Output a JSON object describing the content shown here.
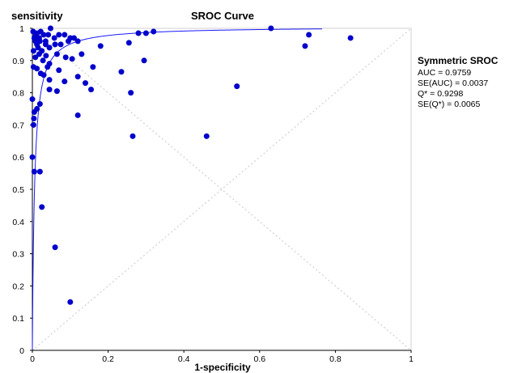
{
  "chart_data": {
    "type": "scatter",
    "title": "SROC Curve",
    "xlabel": "1-specificity",
    "ylabel": "sensitivity",
    "xlim": [
      0,
      1
    ],
    "ylim": [
      0,
      1
    ],
    "x_ticks": [
      "0",
      "0.2",
      "0.4",
      "0.6",
      "0.8",
      "1"
    ],
    "y_ticks": [
      "0",
      "0.1",
      "0.2",
      "0.3",
      "0.4",
      "0.5",
      "0.6",
      "0.7",
      "0.8",
      "0.9",
      "1"
    ],
    "grid": false,
    "legend": {
      "title": "Symmetric SROC",
      "lines": [
        "AUC = 0.9759",
        "SE(AUC) = 0.0037",
        "Q* = 0.9298",
        "SE(Q*) = 0.0065"
      ],
      "placement": "right"
    },
    "series": [
      {
        "type": "scatter",
        "points": [
          [
            0.002,
            0.99
          ],
          [
            0.005,
            0.97
          ],
          [
            0.008,
            0.96
          ],
          [
            0.012,
            0.95
          ],
          [
            0.018,
            0.97
          ],
          [
            0.022,
            0.99
          ],
          [
            0.03,
            0.98
          ],
          [
            0.035,
            0.96
          ],
          [
            0.042,
            0.98
          ],
          [
            0.048,
            1.0
          ],
          [
            0.058,
            0.97
          ],
          [
            0.07,
            0.98
          ],
          [
            0.085,
            0.98
          ],
          [
            0.1,
            0.97
          ],
          [
            0.012,
            0.985
          ],
          [
            0.008,
            0.975
          ],
          [
            0.015,
            0.94
          ],
          [
            0.025,
            0.93
          ],
          [
            0.035,
            0.95
          ],
          [
            0.045,
            0.94
          ],
          [
            0.06,
            0.95
          ],
          [
            0.075,
            0.95
          ],
          [
            0.095,
            0.96
          ],
          [
            0.11,
            0.97
          ],
          [
            0.12,
            0.96
          ],
          [
            0.02,
            0.96
          ],
          [
            0.003,
            0.93
          ],
          [
            0.008,
            0.91
          ],
          [
            0.018,
            0.92
          ],
          [
            0.028,
            0.9
          ],
          [
            0.036,
            0.915
          ],
          [
            0.045,
            0.89
          ],
          [
            0.065,
            0.92
          ],
          [
            0.088,
            0.91
          ],
          [
            0.105,
            0.905
          ],
          [
            0.13,
            0.92
          ],
          [
            0.003,
            0.88
          ],
          [
            0.012,
            0.875
          ],
          [
            0.022,
            0.86
          ],
          [
            0.03,
            0.855
          ],
          [
            0.04,
            0.88
          ],
          [
            0.07,
            0.87
          ],
          [
            0.085,
            0.835
          ],
          [
            0.12,
            0.85
          ],
          [
            0.14,
            0.83
          ],
          [
            0.155,
            0.81
          ],
          [
            0.16,
            0.88
          ],
          [
            0.045,
            0.81
          ],
          [
            0.065,
            0.805
          ],
          [
            0.045,
            0.84
          ],
          [
            0.0,
            0.78
          ],
          [
            0.005,
            0.74
          ],
          [
            0.004,
            0.72
          ],
          [
            0.003,
            0.7
          ],
          [
            0.02,
            0.765
          ],
          [
            0.012,
            0.75
          ],
          [
            0.12,
            0.73
          ],
          [
            0.0,
            0.6
          ],
          [
            0.005,
            0.555
          ],
          [
            0.02,
            0.555
          ],
          [
            0.025,
            0.445
          ],
          [
            0.06,
            0.32
          ],
          [
            0.1,
            0.15
          ],
          [
            0.18,
            0.945
          ],
          [
            0.255,
            0.955
          ],
          [
            0.235,
            0.865
          ],
          [
            0.26,
            0.8
          ],
          [
            0.265,
            0.665
          ],
          [
            0.28,
            0.985
          ],
          [
            0.3,
            0.985
          ],
          [
            0.32,
            0.99
          ],
          [
            0.295,
            0.9
          ],
          [
            0.46,
            0.665
          ],
          [
            0.54,
            0.82
          ],
          [
            0.63,
            1.0
          ],
          [
            0.72,
            0.945
          ],
          [
            0.73,
            0.98
          ],
          [
            0.84,
            0.97
          ]
        ]
      },
      {
        "type": "line",
        "name": "Symmetric SROC",
        "curve": {
          "auc": 0.9759,
          "q_star": 0.9298,
          "x_range": [
            0,
            0.765
          ]
        }
      }
    ],
    "reference_lines": [
      {
        "from": [
          0,
          0
        ],
        "to": [
          1,
          1
        ],
        "style": "dotted"
      },
      {
        "from": [
          0,
          1
        ],
        "to": [
          1,
          0
        ],
        "style": "dotted"
      }
    ],
    "colors": {
      "points": "#0000cc",
      "curve": "#1a1aff",
      "axis": "#000000",
      "reference": "#c8c8c8"
    }
  }
}
